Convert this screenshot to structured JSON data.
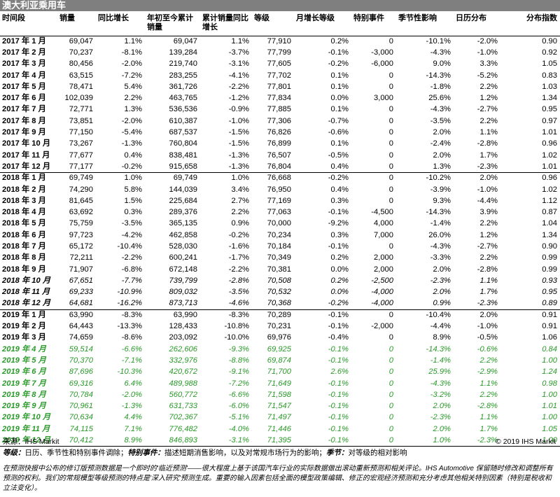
{
  "title": "澳大利亚乘用车",
  "headers": [
    "时间段",
    "销量",
    "同比增长",
    "年初至今累计销量",
    "累计销量同比增长",
    "等级",
    "月增长等级",
    "特别事件",
    "季节性影响",
    "日历分布",
    "分布指数"
  ],
  "rows": [
    [
      "2017 年 1 月",
      "69,047",
      "1.1%",
      "69,047",
      "1.1%",
      "77,910",
      "0.2%",
      "0",
      "-10.1%",
      "-2.0%",
      "0.90"
    ],
    [
      "2017 年 2 月",
      "70,237",
      "-8.1%",
      "139,284",
      "-3.7%",
      "77,799",
      "-0.1%",
      "-3,000",
      "-4.3%",
      "-1.0%",
      "0.92"
    ],
    [
      "2017 年 3 月",
      "80,456",
      "-2.0%",
      "219,740",
      "-3.1%",
      "77,605",
      "-0.2%",
      "-6,000",
      "9.0%",
      "3.3%",
      "1.05"
    ],
    [
      "2017 年 4 月",
      "63,515",
      "-7.2%",
      "283,255",
      "-4.1%",
      "77,702",
      "0.1%",
      "0",
      "-14.3%",
      "-5.2%",
      "0.83"
    ],
    [
      "2017 年 5 月",
      "78,471",
      "5.4%",
      "361,726",
      "-2.2%",
      "77,801",
      "0.1%",
      "0",
      "-1.8%",
      "2.2%",
      "1.03"
    ],
    [
      "2017 年 6 月",
      "102,039",
      "2.2%",
      "463,765",
      "-1.2%",
      "77,834",
      "0.0%",
      "3,000",
      "25.6%",
      "1.2%",
      "1.34"
    ],
    [
      "2017 年 7 月",
      "72,771",
      "1.3%",
      "536,536",
      "-0.9%",
      "77,885",
      "0.1%",
      "0",
      "-4.3%",
      "-2.7%",
      "0.95"
    ],
    [
      "2017 年 8 月",
      "73,851",
      "-2.0%",
      "610,387",
      "-1.0%",
      "77,306",
      "-0.7%",
      "0",
      "-3.5%",
      "2.2%",
      "0.97"
    ],
    [
      "2017 年 9 月",
      "77,150",
      "-5.4%",
      "687,537",
      "-1.5%",
      "76,826",
      "-0.6%",
      "0",
      "2.0%",
      "1.1%",
      "1.01"
    ],
    [
      "2017 年 10 月",
      "73,267",
      "-1.3%",
      "760,804",
      "-1.5%",
      "76,899",
      "0.1%",
      "0",
      "-2.4%",
      "-2.8%",
      "0.96"
    ],
    [
      "2017 年 11 月",
      "77,677",
      "0.4%",
      "838,481",
      "-1.3%",
      "76,507",
      "-0.5%",
      "0",
      "2.0%",
      "1.7%",
      "1.02"
    ],
    [
      "2017 年 12 月",
      "77,177",
      "-0.2%",
      "915,658",
      "-1.3%",
      "76,804",
      "0.4%",
      "0",
      "1.3%",
      "-2.3%",
      "1.01"
    ],
    [
      "2018 年 1 月",
      "69,749",
      "1.0%",
      "69,749",
      "1.0%",
      "76,668",
      "-0.2%",
      "0",
      "-10.2%",
      "2.0%",
      "0.96"
    ],
    [
      "2018 年 2 月",
      "74,290",
      "5.8%",
      "144,039",
      "3.4%",
      "76,950",
      "0.4%",
      "0",
      "-3.9%",
      "-1.0%",
      "1.02"
    ],
    [
      "2018 年 3 月",
      "81,645",
      "1.5%",
      "225,684",
      "2.7%",
      "77,169",
      "0.3%",
      "0",
      "9.3%",
      "-4.4%",
      "1.12"
    ],
    [
      "2018 年 4 月",
      "63,692",
      "0.3%",
      "289,376",
      "2.2%",
      "77,063",
      "-0.1%",
      "-4,500",
      "-14.3%",
      "3.9%",
      "0.87"
    ],
    [
      "2018 年 5 月",
      "75,759",
      "-3.5%",
      "365,135",
      "0.9%",
      "70,000",
      "-9.2%",
      "4,000",
      "-1.4%",
      "2.2%",
      "1.04"
    ],
    [
      "2018 年 6 月",
      "97,723",
      "-4.2%",
      "462,858",
      "-0.2%",
      "70,234",
      "0.3%",
      "7,000",
      "26.0%",
      "1.2%",
      "1.34"
    ],
    [
      "2018 年 7 月",
      "65,172",
      "-10.4%",
      "528,030",
      "-1.6%",
      "70,184",
      "-0.1%",
      "0",
      "-4.3%",
      "-2.7%",
      "0.90"
    ],
    [
      "2018 年 8 月",
      "72,211",
      "-2.2%",
      "600,241",
      "-1.7%",
      "70,349",
      "0.2%",
      "2,000",
      "-3.3%",
      "2.2%",
      "0.99"
    ],
    [
      "2018 年 9 月",
      "71,907",
      "-6.8%",
      "672,148",
      "-2.2%",
      "70,381",
      "0.0%",
      "2,000",
      "2.0%",
      "-2.8%",
      "0.99"
    ],
    [
      "2018 年 10 月",
      "67,651",
      "-7.7%",
      "739,799",
      "-2.8%",
      "70,508",
      "0.2%",
      "-2,500",
      "-2.3%",
      "1.1%",
      "0.93"
    ],
    [
      "2018 年 11 月",
      "69,233",
      "-10.9%",
      "809,032",
      "-3.5%",
      "70,532",
      "0.0%",
      "-4,000",
      "2.0%",
      "1.7%",
      "0.95"
    ],
    [
      "2018 年 12 月",
      "64,681",
      "-16.2%",
      "873,713",
      "-4.6%",
      "70,368",
      "-0.2%",
      "-4,000",
      "0.9%",
      "-2.3%",
      "0.89"
    ],
    [
      "2019 年 1 月",
      "63,990",
      "-8.3%",
      "63,990",
      "-8.3%",
      "70,289",
      "-0.1%",
      "0",
      "-10.4%",
      "2.0%",
      "0.91"
    ],
    [
      "2019 年 2 月",
      "64,443",
      "-13.3%",
      "128,433",
      "-10.8%",
      "70,231",
      "-0.1%",
      "-2,000",
      "-4.4%",
      "-1.0%",
      "0.91"
    ],
    [
      "2019 年 3 月",
      "74,659",
      "-8.6%",
      "203,092",
      "-10.0%",
      "69,976",
      "-0.4%",
      "0",
      "8.9%",
      "-0.5%",
      "1.06"
    ],
    [
      "2019 年 4 月",
      "59,514",
      "-6.6%",
      "262,606",
      "-9.3%",
      "69,925",
      "-0.1%",
      "0",
      "-14.3%",
      "-0.6%",
      "0.84"
    ],
    [
      "2019 年 5 月",
      "70,370",
      "-7.1%",
      "332,976",
      "-8.8%",
      "69,874",
      "-0.1%",
      "0",
      "-1.4%",
      "2.2%",
      "1.00"
    ],
    [
      "2019 年 6 月",
      "87,696",
      "-10.3%",
      "420,672",
      "-9.1%",
      "71,700",
      "2.6%",
      "0",
      "25.9%",
      "-2.9%",
      "1.24"
    ],
    [
      "2019 年 7 月",
      "69,316",
      "6.4%",
      "489,988",
      "-7.2%",
      "71,649",
      "-0.1%",
      "0",
      "-4.3%",
      "1.1%",
      "0.98"
    ],
    [
      "2019 年 8 月",
      "70,784",
      "-2.0%",
      "560,772",
      "-6.6%",
      "71,598",
      "-0.1%",
      "0",
      "-3.2%",
      "2.2%",
      "1.00"
    ],
    [
      "2019 年 9 月",
      "70,961",
      "-1.3%",
      "631,733",
      "-6.0%",
      "71,547",
      "-0.1%",
      "0",
      "2.0%",
      "-2.8%",
      "1.01"
    ],
    [
      "2019 年 10 月",
      "70,634",
      "4.4%",
      "702,367",
      "-5.1%",
      "71,497",
      "-0.1%",
      "0",
      "-2.3%",
      "1.1%",
      "1.00"
    ],
    [
      "2019 年 11 月",
      "74,115",
      "7.1%",
      "776,482",
      "-4.0%",
      "71,446",
      "-0.1%",
      "0",
      "2.0%",
      "1.7%",
      "1.05"
    ],
    [
      "2019 年 12 月",
      "70,412",
      "8.9%",
      "846,893",
      "-3.1%",
      "71,395",
      "-0.1%",
      "0",
      "1.0%",
      "-2.3%",
      "1.00"
    ]
  ],
  "source_left": "来源：IHS Markit",
  "source_right": "© 2019 IHS Markit",
  "legend": {
    "grade_label": "等级：",
    "grade_text": "日历、季节性和特别事件调除；",
    "event_label": "特别事件：",
    "event_text": "描述短期消售影响，以及对常规市场行为的影响；",
    "season_label": "季节：",
    "season_text": "对等级的相对影响"
  },
  "footer": "在预测快报中公布的修订版预测数据是一个即时的'临近预测'——很大程度上基于该国汽车行业的实际数据做出滚动重新预测和相关评论。IHS Automotive 保留随时修改和调整所有预测的权利。我们的常规模型等级预测的特点是'深入研究'预测生成。重要的输入因素包括全面的模型政策编辑、修正的宏观经济预测和充分考虑其他相关特别因素（特别是税收和立法变化）。",
  "colors": {
    "banner": "#7f7f7f",
    "forecast_green": "#2a9a2a"
  }
}
